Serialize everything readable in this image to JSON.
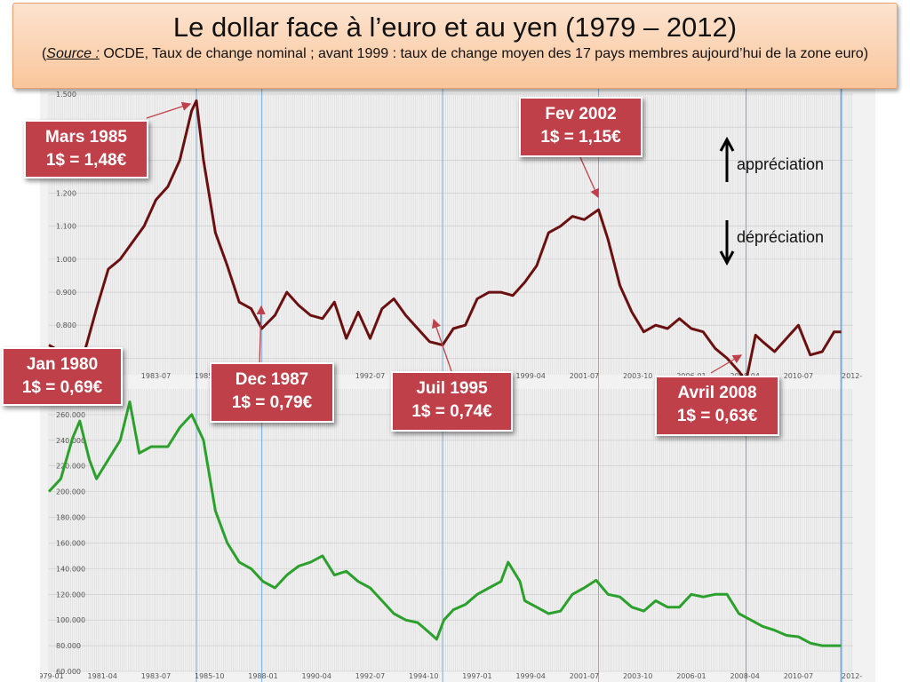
{
  "header": {
    "title": "Le dollar face à l’euro et au yen (1979 – 2012)",
    "source_label": "Source :",
    "source_text": " OCDE, Taux de change nominal ; avant 1999 : taux de change moyen des 17 pays membres aujourd’hui de la zone euro)"
  },
  "colors": {
    "euro_line": "#6b1010",
    "yen_line": "#2ca02c",
    "callout": "#c0404a",
    "marker": "#7fb0d8"
  },
  "annotations": {
    "mars1985": {
      "date": "Mars 1985",
      "value": "1$ = 1,48€"
    },
    "jan1980": {
      "date": "Jan 1980",
      "value": "1$ = 0,69€"
    },
    "dec1987": {
      "date": "Dec 1987",
      "value": "1$ = 0,79€"
    },
    "juil1995": {
      "date": "Juil 1995",
      "value": "1$ = 0,74€"
    },
    "fev2002": {
      "date": "Fev 2002",
      "value": "1$ = 1,15€"
    },
    "avril2008": {
      "date": "Avril 2008",
      "value": "1$ = 0,63€"
    },
    "appreciation": "appréciation",
    "depreciation": "dépréciation"
  },
  "chart_data": [
    {
      "type": "line",
      "ylim": [
        0.65,
        1.5
      ],
      "yticks": [
        "0.700",
        "0.800",
        "0.900",
        "1.000",
        "1.100",
        "1.200",
        "1.300",
        "1.400",
        "1.500"
      ],
      "ytick_values": [
        0.7,
        0.8,
        0.9,
        1.0,
        1.1,
        1.2,
        1.3,
        1.4,
        1.5
      ],
      "xticks": [
        "1981-04",
        "1983-07",
        "1985-10",
        "1988-01",
        "1990-04",
        "1992-07",
        "1994-10",
        "1997-01",
        "1999-04",
        "2001-07",
        "2003-10",
        "2006-01",
        "2008-04",
        "2010-07",
        "2012-"
      ],
      "xtick_values": [
        1981.25,
        1983.5,
        1985.75,
        1988.0,
        1990.25,
        1992.5,
        1994.75,
        1997.0,
        1999.25,
        2001.5,
        2003.75,
        2006.0,
        2008.25,
        2010.5,
        2012.75
      ],
      "xlim": [
        1979.0,
        2012.8
      ],
      "markers_x": [
        1985.2,
        1987.95,
        1995.55,
        2002.1,
        2008.3,
        2012.3
      ],
      "x": [
        1979.0,
        1979.5,
        1980.0,
        1980.5,
        1981.0,
        1981.5,
        1982.0,
        1982.5,
        1983.0,
        1983.5,
        1984.0,
        1984.5,
        1985.0,
        1985.2,
        1985.5,
        1986.0,
        1986.5,
        1987.0,
        1987.5,
        1987.95,
        1988.5,
        1989.0,
        1989.5,
        1990.0,
        1990.5,
        1991.0,
        1991.5,
        1992.0,
        1992.5,
        1993.0,
        1993.5,
        1994.0,
        1994.5,
        1995.0,
        1995.55,
        1996.0,
        1996.5,
        1997.0,
        1997.5,
        1998.0,
        1998.5,
        1999.0,
        1999.5,
        2000.0,
        2000.5,
        2001.0,
        2001.5,
        2002.1,
        2002.5,
        2003.0,
        2003.5,
        2004.0,
        2004.5,
        2005.0,
        2005.5,
        2006.0,
        2006.5,
        2007.0,
        2007.5,
        2008.0,
        2008.3,
        2008.7,
        2009.0,
        2009.5,
        2010.0,
        2010.5,
        2011.0,
        2011.5,
        2012.0,
        2012.3
      ],
      "y": [
        0.74,
        0.72,
        0.69,
        0.72,
        0.85,
        0.97,
        1.0,
        1.05,
        1.1,
        1.18,
        1.22,
        1.3,
        1.45,
        1.48,
        1.3,
        1.08,
        0.98,
        0.87,
        0.85,
        0.79,
        0.83,
        0.9,
        0.86,
        0.83,
        0.82,
        0.87,
        0.76,
        0.84,
        0.76,
        0.85,
        0.88,
        0.83,
        0.79,
        0.75,
        0.74,
        0.79,
        0.8,
        0.88,
        0.9,
        0.9,
        0.89,
        0.93,
        0.98,
        1.08,
        1.1,
        1.13,
        1.12,
        1.15,
        1.06,
        0.92,
        0.84,
        0.78,
        0.8,
        0.79,
        0.82,
        0.79,
        0.78,
        0.73,
        0.7,
        0.66,
        0.63,
        0.77,
        0.75,
        0.72,
        0.76,
        0.8,
        0.71,
        0.72,
        0.78,
        0.78
      ]
    },
    {
      "type": "line",
      "ylim": [
        60,
        280
      ],
      "yticks": [
        "60.000",
        "80.000",
        "100.000",
        "120.000",
        "140.000",
        "160.000",
        "180.000",
        "200.000",
        "220.000",
        "240.000",
        "260.000"
      ],
      "ytick_values": [
        60,
        80,
        100,
        120,
        140,
        160,
        180,
        200,
        220,
        240,
        260
      ],
      "xticks": [
        "1979-01",
        "1981-04",
        "1983-07",
        "1985-10",
        "1988-01",
        "1990-04",
        "1992-07",
        "1994-10",
        "1997-01",
        "1999-04",
        "2001-07",
        "2003-10",
        "2006-01",
        "2008-04",
        "2010-07",
        "2012-"
      ],
      "xtick_values": [
        1979.0,
        1981.25,
        1983.5,
        1985.75,
        1988.0,
        1990.25,
        1992.5,
        1994.75,
        1997.0,
        1999.25,
        2001.5,
        2003.75,
        2006.0,
        2008.25,
        2010.5,
        2012.75
      ],
      "xlim": [
        1979.0,
        2012.8
      ],
      "markers_x": [
        1985.2,
        1987.95,
        1995.55,
        2002.1,
        2008.3,
        2012.3
      ],
      "x": [
        1979.0,
        1979.5,
        1980.0,
        1980.3,
        1980.7,
        1981.0,
        1981.5,
        1982.0,
        1982.4,
        1982.8,
        1983.3,
        1984.0,
        1984.5,
        1985.0,
        1985.5,
        1986.0,
        1986.5,
        1987.0,
        1987.5,
        1988.0,
        1988.5,
        1989.0,
        1989.5,
        1990.0,
        1990.5,
        1991.0,
        1991.5,
        1992.0,
        1992.5,
        1993.0,
        1993.5,
        1994.0,
        1994.5,
        1995.0,
        1995.3,
        1995.6,
        1996.0,
        1996.5,
        1997.0,
        1997.5,
        1998.0,
        1998.3,
        1998.8,
        1999.0,
        1999.5,
        2000.0,
        2000.5,
        2001.0,
        2001.5,
        2002.0,
        2002.5,
        2003.0,
        2003.5,
        2004.0,
        2004.5,
        2005.0,
        2005.5,
        2006.0,
        2006.5,
        2007.0,
        2007.5,
        2008.0,
        2008.5,
        2009.0,
        2009.5,
        2010.0,
        2010.5,
        2011.0,
        2011.5,
        2012.0,
        2012.3
      ],
      "y": [
        200,
        210,
        242,
        255,
        225,
        210,
        225,
        240,
        270,
        230,
        235,
        235,
        250,
        260,
        240,
        185,
        160,
        145,
        140,
        130,
        125,
        135,
        142,
        145,
        150,
        135,
        138,
        130,
        125,
        115,
        105,
        100,
        98,
        90,
        85,
        100,
        108,
        112,
        120,
        125,
        130,
        145,
        130,
        115,
        110,
        105,
        107,
        120,
        125,
        131,
        120,
        118,
        110,
        107,
        115,
        110,
        110,
        120,
        118,
        120,
        120,
        105,
        100,
        95,
        92,
        88,
        87,
        82,
        80,
        80,
        80
      ]
    }
  ]
}
